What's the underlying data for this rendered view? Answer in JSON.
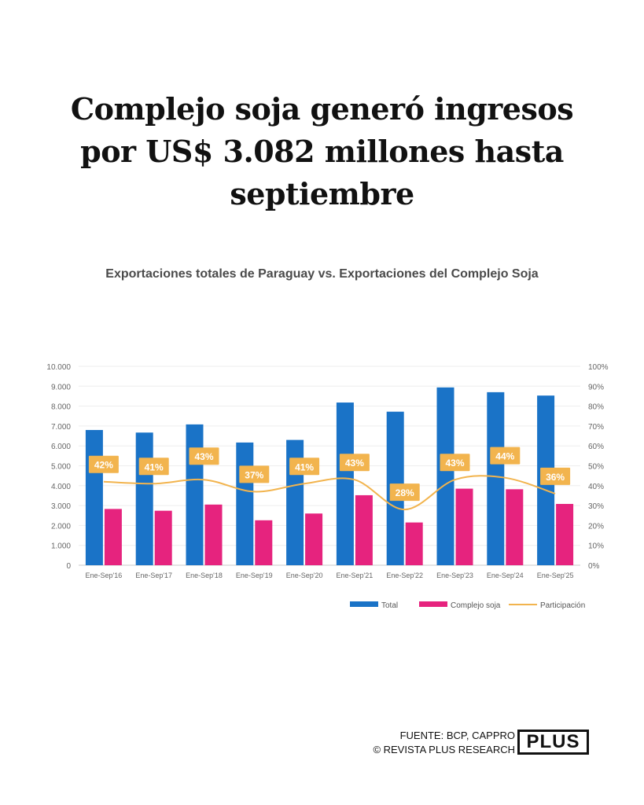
{
  "headline": {
    "line1": "Complejo soja generó ingresos",
    "line2": "por US$ 3.082 millones hasta",
    "line3": "septiembre"
  },
  "chart_data": {
    "type": "bar",
    "title": "Exportaciones totales de Paraguay vs. Exportaciones del Complejo Soja",
    "categories": [
      "Ene-Sep'16",
      "Ene-Sep'17",
      "Ene-Sep'18",
      "Ene-Sep'19",
      "Ene-Sep'20",
      "Ene-Sep'21",
      "Ene-Sep'22",
      "Ene-Sep'23",
      "Ene-Sep'24",
      "Ene-Sep'25"
    ],
    "series": [
      {
        "name": "Total",
        "type": "bar",
        "axis": "left",
        "color": "#1a73c7",
        "values": [
          6800,
          6670,
          7080,
          6170,
          6300,
          8180,
          7720,
          8940,
          8700,
          8530
        ]
      },
      {
        "name": "Complejo soja",
        "type": "bar",
        "axis": "left",
        "color": "#e6237e",
        "values": [
          2830,
          2740,
          3050,
          2260,
          2600,
          3520,
          2150,
          3850,
          3820,
          3082
        ]
      },
      {
        "name": "Participación",
        "type": "line",
        "axis": "right",
        "color": "#f2b44e",
        "values": [
          42,
          41,
          43,
          37,
          41,
          43,
          28,
          43,
          44,
          36
        ],
        "labels": [
          "42%",
          "41%",
          "43%",
          "37%",
          "41%",
          "43%",
          "28%",
          "43%",
          "44%",
          "36%"
        ]
      }
    ],
    "y_left": {
      "min": 0,
      "max": 10000,
      "ticks": [
        "0",
        "1.000",
        "2.000",
        "3.000",
        "4.000",
        "5.000",
        "6.000",
        "7.000",
        "8.000",
        "9.000",
        "10.000"
      ]
    },
    "y_right": {
      "min": 0,
      "max": 100,
      "ticks": [
        "0%",
        "10%",
        "20%",
        "30%",
        "40%",
        "50%",
        "60%",
        "70%",
        "80%",
        "90%",
        "100%"
      ]
    },
    "legend_position": "bottom-right",
    "grid": true
  },
  "footer": {
    "source": "FUENTE: BCP, CAPPRO",
    "credit": "©  REVISTA PLUS RESEARCH",
    "logo": "PLUS"
  }
}
